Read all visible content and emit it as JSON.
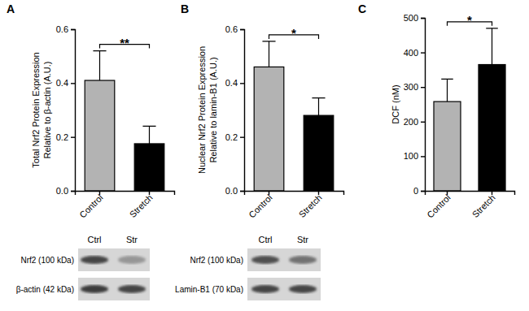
{
  "chart_data": [
    {
      "type": "bar",
      "panel_label": "A",
      "ylabel": [
        "Total Nrf2 Protein Expression",
        "Relative to β-actin (A.U.)"
      ],
      "categories": [
        "Control",
        "Stretch"
      ],
      "values": [
        0.41,
        0.175
      ],
      "errors": [
        0.11,
        0.065
      ],
      "colors": [
        "#b3b3b3",
        "#000000"
      ],
      "ylim": [
        0,
        0.6
      ],
      "yticks": [
        {
          "value": 0,
          "label": "0.0"
        },
        0.2,
        0.4,
        0.6
      ],
      "annotations": [
        "**"
      ],
      "blot": {
        "lanes": [
          "Ctrl",
          "Str"
        ],
        "rows": [
          "Nrf2 (100 kDa)",
          "β-actin (42 kDa)"
        ]
      }
    },
    {
      "type": "bar",
      "panel_label": "B",
      "ylabel": [
        "Nuclear Nrf2 Protein Expression",
        "Relative to lamin-B1 (A.U.)"
      ],
      "categories": [
        "Control",
        "Stretch"
      ],
      "values": [
        0.46,
        0.28
      ],
      "errors": [
        0.095,
        0.065
      ],
      "colors": [
        "#b3b3b3",
        "#000000"
      ],
      "ylim": [
        0,
        0.6
      ],
      "yticks": [
        {
          "value": 0,
          "label": "0.0"
        },
        0.2,
        0.4,
        0.6
      ],
      "annotations": [
        "*"
      ],
      "blot": {
        "lanes": [
          "Ctrl",
          "Str"
        ],
        "rows": [
          "Nrf2 (100 kDa)",
          "Lamin-B1 (70 kDa)"
        ]
      }
    },
    {
      "type": "bar",
      "panel_label": "C",
      "ylabel": [
        "DCF (nM)"
      ],
      "categories": [
        "Control",
        "Stretch"
      ],
      "values": [
        258,
        365
      ],
      "errors": [
        65,
        105
      ],
      "colors": [
        "#b3b3b3",
        "#000000"
      ],
      "ylim": [
        0,
        500
      ],
      "yticks": [
        0,
        100,
        200,
        300,
        400,
        500
      ],
      "annotations": [
        "*"
      ]
    }
  ]
}
